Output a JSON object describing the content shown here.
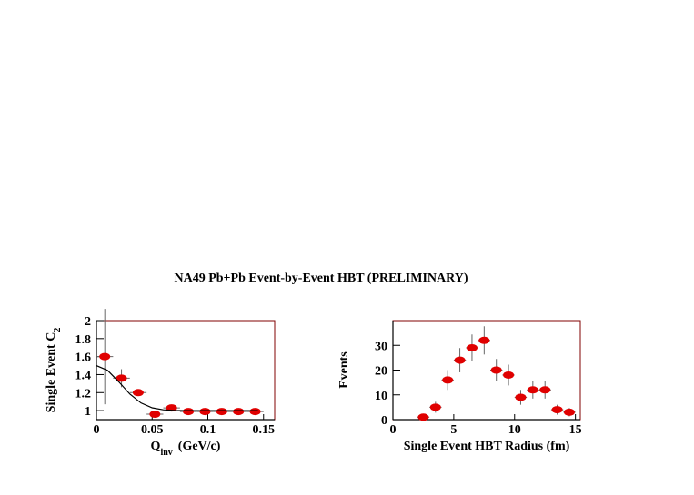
{
  "title": "NA49 Pb+Pb Event-by-Event HBT (PRELIMINARY)",
  "chart_data": [
    {
      "type": "scatter",
      "xlabel": [
        "Q",
        "inv",
        "(GeV/c)"
      ],
      "ylabel": [
        "Single Event C",
        "2"
      ],
      "xlim": [
        0,
        0.16
      ],
      "ylim": [
        0.9,
        2
      ],
      "xticks": [
        0,
        0.05,
        0.1,
        0.15
      ],
      "yticks": [
        1,
        1.2,
        1.4,
        1.6,
        1.8,
        2
      ],
      "series": [
        {
          "type": "scatter",
          "color": "#e00000",
          "x": [
            0.0075,
            0.0225,
            0.0375,
            0.0525,
            0.0675,
            0.0825,
            0.0975,
            0.1125,
            0.1275,
            0.1425
          ],
          "values": [
            1.6,
            1.36,
            1.2,
            0.96,
            1.03,
            0.99,
            0.99,
            0.99,
            0.99,
            0.99
          ],
          "xerr": [
            0.0075,
            0.0075,
            0.0075,
            0.0075,
            0.0075,
            0.0075,
            0.0075,
            0.0075,
            0.0075,
            0.0075
          ],
          "yerr": [
            0.53,
            0.1,
            0.03,
            0.02,
            0.02,
            0.01,
            0.01,
            0.01,
            0.01,
            0.01
          ]
        },
        {
          "type": "line",
          "color": "#000000",
          "x": [
            0,
            0.01,
            0.02,
            0.03,
            0.04,
            0.05,
            0.06,
            0.07,
            0.08,
            0.1,
            0.12,
            0.145
          ],
          "values": [
            1.5,
            1.447,
            1.321,
            1.184,
            1.085,
            1.031,
            1.009,
            1.002,
            1.0,
            1.0,
            1.0,
            1.0
          ]
        }
      ]
    },
    {
      "type": "scatter",
      "xlabel": [
        "Single Event HBT Radius (fm)"
      ],
      "ylabel": [
        "Events"
      ],
      "xlim": [
        0,
        15.4
      ],
      "ylim": [
        0,
        40
      ],
      "xticks": [
        0,
        5,
        10,
        15
      ],
      "yticks": [
        0,
        10,
        20,
        30
      ],
      "series": [
        {
          "type": "scatter",
          "color": "#e00000",
          "x": [
            2.5,
            3.5,
            4.5,
            5.5,
            6.5,
            7.5,
            8.5,
            9.5,
            10.5,
            11.5,
            12.5,
            13.5,
            14.5
          ],
          "values": [
            1,
            5,
            16,
            24,
            29,
            32,
            20,
            18,
            9,
            12,
            12,
            4,
            3
          ],
          "xerr": [
            0.5,
            0.5,
            0.5,
            0.5,
            0.5,
            0.5,
            0.5,
            0.5,
            0.5,
            0.5,
            0.5,
            0.5,
            0.5
          ],
          "yerr": [
            1,
            2.2,
            4,
            4.9,
            5.4,
            5.7,
            4.5,
            4.2,
            3,
            3.5,
            3.5,
            2,
            1.7
          ]
        }
      ]
    }
  ]
}
